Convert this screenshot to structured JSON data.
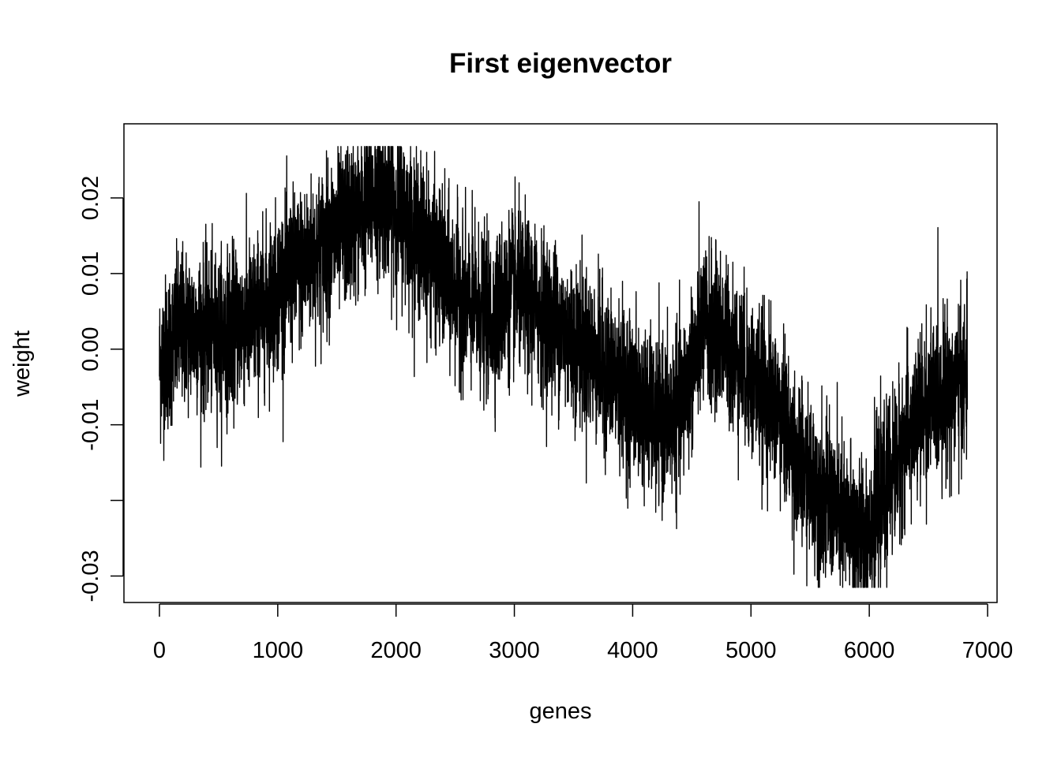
{
  "chart_data": {
    "type": "line",
    "title": "First eigenvector",
    "xlabel": "genes",
    "ylabel": "weight",
    "xlim": [
      -300,
      7080
    ],
    "ylim": [
      -0.0335,
      0.0298
    ],
    "x_ticks": [
      0,
      1000,
      2000,
      3000,
      4000,
      5000,
      6000,
      7000
    ],
    "x_tick_labels": [
      "0",
      "1000",
      "2000",
      "3000",
      "4000",
      "5000",
      "6000",
      "7000"
    ],
    "y_ticks": [
      -0.03,
      -0.02,
      -0.01,
      0.0,
      0.01,
      0.02
    ],
    "y_tick_labels": [
      "-0.03",
      "",
      "-0.01",
      "0.00",
      "0.01",
      "0.02"
    ],
    "grid": false,
    "legend": "none",
    "series": [
      {
        "name": "First eigenvector weights",
        "color": "#000000",
        "n_points": 6830,
        "trend": {
          "x": [
            0,
            200,
            500,
            800,
            1000,
            1200,
            1500,
            1700,
            1850,
            2000,
            2200,
            2400,
            2600,
            2800,
            3000,
            3300,
            3600,
            3800,
            4000,
            4200,
            4400,
            4600,
            4800,
            5000,
            5200,
            5400,
            5600,
            5800,
            5950,
            6100,
            6300,
            6500,
            6700,
            6830
          ],
          "y": [
            -0.002,
            0.003,
            0.002,
            0.004,
            0.008,
            0.011,
            0.015,
            0.018,
            0.021,
            0.019,
            0.015,
            0.01,
            0.006,
            0.004,
            0.008,
            0.004,
            0.0,
            -0.003,
            -0.006,
            -0.01,
            -0.008,
            0.003,
            0.001,
            -0.004,
            -0.007,
            -0.015,
            -0.019,
            -0.023,
            -0.025,
            -0.02,
            -0.012,
            -0.007,
            -0.005,
            -0.004
          ]
        },
        "noise_amplitude": 0.0052
      }
    ]
  }
}
